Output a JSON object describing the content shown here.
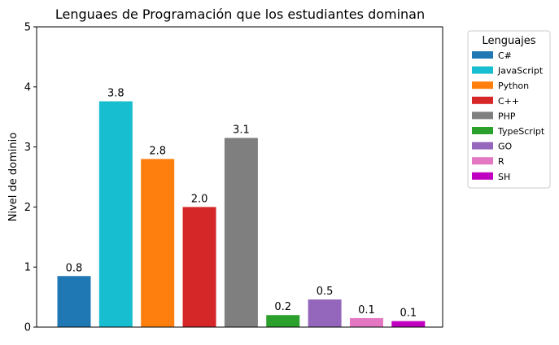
{
  "chart_data": {
    "type": "bar",
    "title": "Lenguaes de Programación que los estudiantes dominan",
    "xlabel": "",
    "ylabel": "Nivel de dominio",
    "ylim": [
      0,
      5
    ],
    "yticks": [
      0,
      1,
      2,
      3,
      4,
      5
    ],
    "grid": false,
    "legend": {
      "title": "Lenguajes",
      "placement": "outside-right-top"
    },
    "categories": [
      "C#",
      "JavaScript",
      "Python",
      "C++",
      "PHP",
      "TypeScript",
      "GO",
      "R",
      "SH"
    ],
    "values": [
      0.85,
      3.76,
      2.8,
      2.0,
      3.15,
      0.2,
      0.46,
      0.15,
      0.1
    ],
    "value_labels": [
      "0.8",
      "3.8",
      "2.8",
      "2.0",
      "3.1",
      "0.2",
      "0.5",
      "0.1",
      "0.1"
    ],
    "colors": [
      "#1f77b4",
      "#17becf",
      "#ff7f0e",
      "#d62728",
      "#7f7f7f",
      "#2ca02c",
      "#9467bd",
      "#e377c2",
      "#c000c0"
    ]
  }
}
